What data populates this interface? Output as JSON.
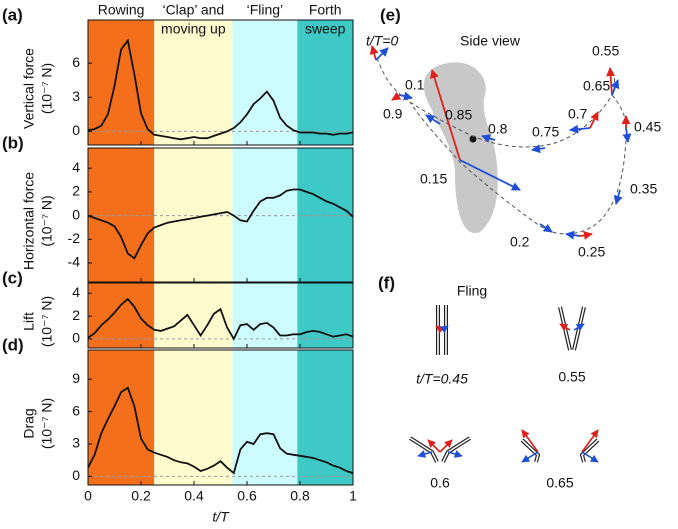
{
  "chart_data": [
    {
      "type": "line",
      "panel": "(a)",
      "ylabel": [
        "Vertical force",
        "(10⁻⁷ N)"
      ],
      "phases": [
        {
          "label": [
            "Rowing"
          ],
          "start": 0,
          "end": 0.25,
          "color": "#f36f1c"
        },
        {
          "label": [
            "‘Clap’ and",
            "moving up"
          ],
          "start": 0.25,
          "end": 0.545,
          "color": "#fdfbcd"
        },
        {
          "label": [
            "‘Fling’"
          ],
          "start": 0.545,
          "end": 0.79,
          "color": "#ccfcfd"
        },
        {
          "label": [
            "Forth",
            "sweep"
          ],
          "start": 0.79,
          "end": 1,
          "color": "#3ec9c6"
        }
      ],
      "xlim": [
        0,
        1
      ],
      "ylim": [
        -1.2,
        9.8
      ],
      "yticks": [
        0,
        3,
        6
      ],
      "x": [
        0,
        0.025,
        0.05,
        0.075,
        0.1,
        0.125,
        0.15,
        0.175,
        0.2,
        0.225,
        0.25,
        0.275,
        0.3,
        0.325,
        0.35,
        0.375,
        0.4,
        0.425,
        0.45,
        0.475,
        0.5,
        0.525,
        0.55,
        0.575,
        0.6,
        0.625,
        0.65,
        0.675,
        0.7,
        0.725,
        0.75,
        0.775,
        0.8,
        0.825,
        0.85,
        0.875,
        0.9,
        0.925,
        0.95,
        0.975,
        1
      ],
      "series": [
        {
          "color": "#111111",
          "values": [
            0.1,
            0.2,
            0.5,
            1.5,
            4,
            7.2,
            8,
            5,
            1.6,
            0.2,
            -0.3,
            -0.4,
            -0.5,
            -0.6,
            -0.7,
            -0.6,
            -0.5,
            -0.6,
            -0.6,
            -0.4,
            -0.2,
            0,
            0.3,
            0.8,
            1.5,
            2.4,
            2.9,
            3.5,
            2.7,
            1.2,
            0.5,
            0.1,
            -0.1,
            -0.1,
            -0.1,
            -0.2,
            -0.2,
            -0.3,
            -0.2,
            -0.2,
            -0.1
          ]
        }
      ]
    },
    {
      "type": "line",
      "panel": "(b)",
      "ylabel": [
        "Horizontal force",
        "(10⁻⁷ N)"
      ],
      "xlim": [
        0,
        1
      ],
      "ylim": [
        -5.6,
        5.7
      ],
      "yticks": [
        -4,
        -2,
        0,
        2,
        4
      ],
      "x": [
        0,
        0.025,
        0.05,
        0.075,
        0.1,
        0.125,
        0.15,
        0.175,
        0.2,
        0.225,
        0.25,
        0.275,
        0.3,
        0.325,
        0.35,
        0.375,
        0.4,
        0.425,
        0.45,
        0.475,
        0.5,
        0.525,
        0.55,
        0.575,
        0.6,
        0.625,
        0.65,
        0.675,
        0.7,
        0.725,
        0.75,
        0.775,
        0.8,
        0.825,
        0.85,
        0.875,
        0.9,
        0.925,
        0.95,
        0.975,
        1
      ],
      "series": [
        {
          "color": "#111111",
          "values": [
            0,
            -0.2,
            -0.4,
            -0.6,
            -0.9,
            -1.8,
            -3.2,
            -3.6,
            -2.5,
            -1.5,
            -1,
            -0.8,
            -0.6,
            -0.5,
            -0.4,
            -0.3,
            -0.2,
            -0.1,
            0,
            0.1,
            0.2,
            0.3,
            0,
            -0.4,
            -0.5,
            0.4,
            1.2,
            1.5,
            1.5,
            1.7,
            2.1,
            2.2,
            2.2,
            2,
            1.8,
            1.5,
            1.2,
            1,
            0.7,
            0.4,
            -0.1
          ]
        }
      ]
    },
    {
      "type": "line",
      "panel": "(c)",
      "ylabel": [
        "Lift",
        "(10⁻⁷ N)"
      ],
      "xlim": [
        0,
        1
      ],
      "ylim": [
        -0.8,
        4.9
      ],
      "yticks": [
        0,
        2,
        4
      ],
      "x": [
        0,
        0.025,
        0.05,
        0.075,
        0.1,
        0.125,
        0.15,
        0.175,
        0.2,
        0.225,
        0.25,
        0.275,
        0.3,
        0.325,
        0.35,
        0.375,
        0.4,
        0.425,
        0.45,
        0.475,
        0.5,
        0.525,
        0.55,
        0.575,
        0.6,
        0.625,
        0.65,
        0.675,
        0.7,
        0.725,
        0.75,
        0.775,
        0.8,
        0.825,
        0.85,
        0.875,
        0.9,
        0.925,
        0.95,
        0.975,
        1
      ],
      "series": [
        {
          "color": "#111111",
          "values": [
            0.1,
            0.5,
            1.2,
            1.7,
            2.3,
            3,
            3.5,
            2.8,
            1.8,
            1.2,
            0.8,
            0.7,
            0.9,
            1.1,
            1.6,
            2.1,
            1.2,
            0.3,
            1.2,
            2.2,
            2.6,
            1,
            0,
            1.2,
            1.3,
            0.8,
            1.3,
            1.4,
            1,
            0.3,
            0.3,
            0.4,
            0.4,
            0.6,
            0.7,
            0.6,
            0.4,
            0.2,
            0.3,
            0.4,
            0.2
          ]
        }
      ]
    },
    {
      "type": "line",
      "panel": "(d)",
      "ylabel": [
        "Drag",
        "(10⁻⁷ N)"
      ],
      "xlabel": "t/T",
      "xlim": [
        0,
        1
      ],
      "ylim": [
        -0.8,
        11.7
      ],
      "yticks": [
        0,
        3,
        6,
        9
      ],
      "xticks": [
        0,
        0.2,
        0.4,
        0.6,
        0.8,
        1
      ],
      "x": [
        0,
        0.025,
        0.05,
        0.075,
        0.1,
        0.125,
        0.15,
        0.175,
        0.2,
        0.225,
        0.25,
        0.275,
        0.3,
        0.325,
        0.35,
        0.375,
        0.4,
        0.425,
        0.45,
        0.475,
        0.5,
        0.525,
        0.55,
        0.575,
        0.6,
        0.625,
        0.65,
        0.675,
        0.7,
        0.725,
        0.75,
        0.775,
        0.8,
        0.825,
        0.85,
        0.875,
        0.9,
        0.925,
        0.95,
        0.975,
        1
      ],
      "series": [
        {
          "color": "#111111",
          "values": [
            0.8,
            2,
            4,
            5.3,
            6.5,
            7.8,
            8.2,
            6.5,
            3.5,
            2.5,
            2.2,
            2,
            1.8,
            1.5,
            1.3,
            1.2,
            0.9,
            0.5,
            0.7,
            1,
            1.4,
            0.8,
            0.3,
            2.5,
            3.2,
            3,
            3.9,
            4,
            3.9,
            2.6,
            2.1,
            2,
            1.9,
            1.8,
            1.7,
            1.5,
            1.3,
            1,
            0.8,
            0.5,
            0.3
          ]
        }
      ]
    }
  ],
  "diagram_e": {
    "label": "(e)",
    "title": "Side view",
    "points": [
      "t/T=0",
      "0.1",
      "0.9",
      "0.85",
      "0.8",
      "0.75",
      "0.7",
      "0.65",
      "0.55",
      "0.45",
      "0.35",
      "0.25",
      "0.2",
      "0.15"
    ]
  },
  "diagram_f": {
    "label": "(f)",
    "title": "Fling",
    "frames": [
      "t/T=0.45",
      "0.55",
      "0.6",
      "0.65"
    ]
  }
}
